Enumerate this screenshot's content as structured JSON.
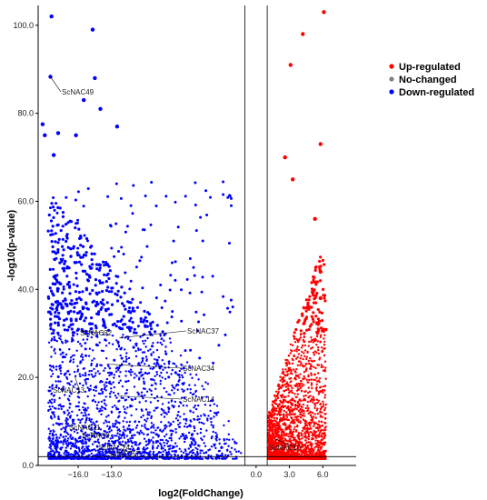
{
  "chart_data": {
    "type": "scatter",
    "xlabel": "log2(FoldChange)",
    "ylabel": "-log10(p-value)",
    "xlim": [
      -19.6,
      9.0
    ],
    "ylim": [
      0,
      104.5
    ],
    "x_ticks": [
      -16.0,
      -13.0,
      0.0,
      3.0,
      6.0
    ],
    "x_tick_labels": [
      "−16.0",
      "−13.0",
      "0.0",
      "3.0",
      "6.0"
    ],
    "y_ticks": [
      0,
      20,
      40,
      60,
      80,
      100
    ],
    "y_tick_labels": [
      "0.0",
      "20.0",
      "40.0",
      "60.0",
      "80.0",
      "100.0"
    ],
    "fold_change_threshold_lines": [
      -1,
      1
    ],
    "pvalue_threshold_line": 2,
    "legend_position": "top-right",
    "series": [
      {
        "name": "Up-regulated",
        "color": "#ff0000"
      },
      {
        "name": "No-changed",
        "color": "#808080"
      },
      {
        "name": "Down-regulated",
        "color": "#0000ff"
      }
    ],
    "highlighted_points": [
      {
        "x": -18.4,
        "y": 102.0,
        "series": "Down-regulated"
      },
      {
        "x": -14.7,
        "y": 99.0,
        "series": "Down-regulated"
      },
      {
        "x": -14.5,
        "y": 88.0,
        "series": "Down-regulated"
      },
      {
        "x": -18.5,
        "y": 88.3,
        "series": "Down-regulated"
      },
      {
        "x": -15.5,
        "y": 83.0,
        "series": "Down-regulated"
      },
      {
        "x": -14.0,
        "y": 81.0,
        "series": "Down-regulated"
      },
      {
        "x": -19.2,
        "y": 77.5,
        "series": "Down-regulated"
      },
      {
        "x": -17.8,
        "y": 75.5,
        "series": "Down-regulated"
      },
      {
        "x": -19.0,
        "y": 75.0,
        "series": "Down-regulated"
      },
      {
        "x": -18.2,
        "y": 70.5,
        "series": "Down-regulated"
      },
      {
        "x": -12.5,
        "y": 77.0,
        "series": "Down-regulated"
      },
      {
        "x": -16.2,
        "y": 75.0,
        "series": "Down-regulated"
      },
      {
        "x": 6.1,
        "y": 103.0,
        "series": "Up-regulated"
      },
      {
        "x": 4.2,
        "y": 98.0,
        "series": "Up-regulated"
      },
      {
        "x": 3.1,
        "y": 91.0,
        "series": "Up-regulated"
      },
      {
        "x": 5.8,
        "y": 73.0,
        "series": "Up-regulated"
      },
      {
        "x": 2.6,
        "y": 70.0,
        "series": "Up-regulated"
      },
      {
        "x": 3.3,
        "y": 65.0,
        "series": "Up-regulated"
      },
      {
        "x": 5.3,
        "y": 56.0,
        "series": "Up-regulated"
      },
      {
        "x": 5.8,
        "y": 44.0,
        "series": "Up-regulated"
      },
      {
        "x": 5.8,
        "y": 38.0,
        "series": "Up-regulated"
      },
      {
        "x": 5.3,
        "y": 28.5,
        "series": "Up-regulated"
      }
    ],
    "labels": [
      {
        "text": "ScNAC49",
        "x": -18.5,
        "y": 88.3
      },
      {
        "text": "ScNAC32",
        "x": -15.8,
        "y": 30.5
      },
      {
        "text": "ScNAC37",
        "x": -12.3,
        "y": 29.0
      },
      {
        "text": "ScNAC34",
        "x": -13.3,
        "y": 23.0
      },
      {
        "text": "ScNAC13",
        "x": -16.3,
        "y": 20.2
      },
      {
        "text": "ScNAC14",
        "x": -12.4,
        "y": 15.8
      },
      {
        "text": "ScNAC11",
        "x": -14.5,
        "y": 9.2
      },
      {
        "text": "ScNAC9",
        "x": -14.9,
        "y": 7.5
      },
      {
        "text": "ScNAC24",
        "x": -12.1,
        "y": 5.0
      },
      {
        "text": "ScNAC57",
        "x": -12.1,
        "y": 3.5
      },
      {
        "text": "ScNAC10",
        "x": 1.7,
        "y": 6.0
      }
    ]
  }
}
